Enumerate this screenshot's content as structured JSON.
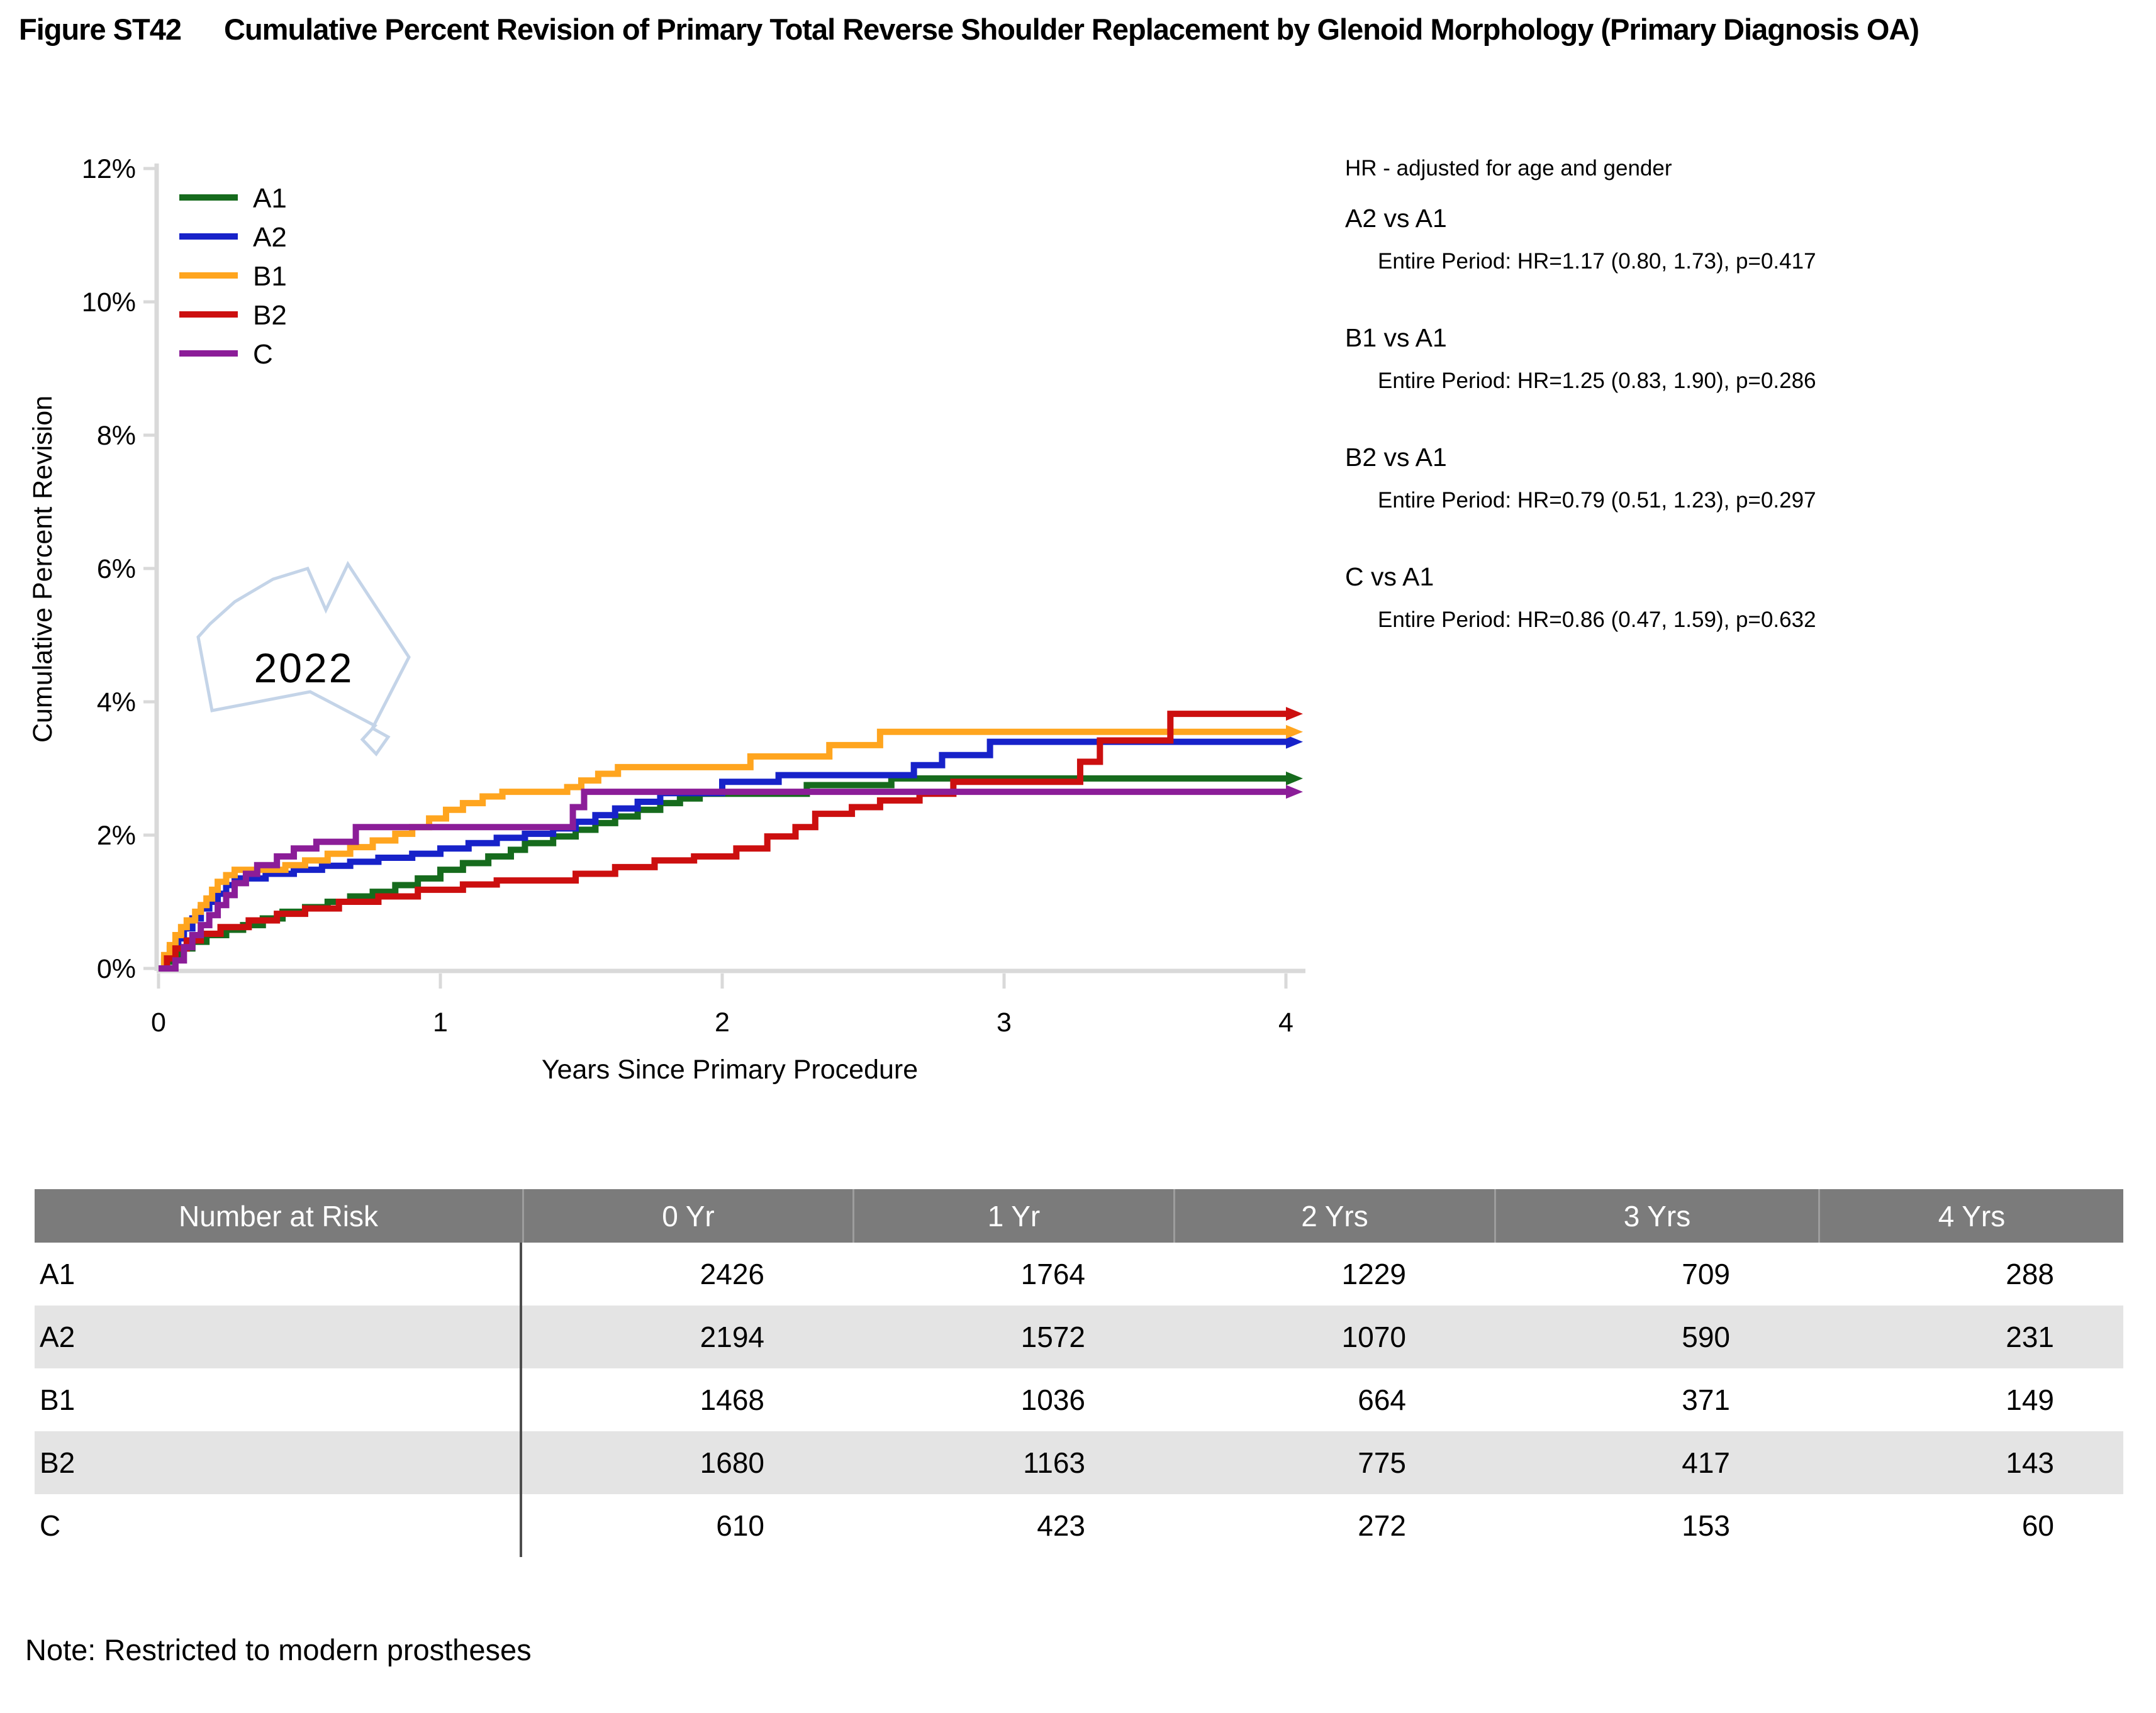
{
  "figure": {
    "number": "Figure ST42",
    "title": "Cumulative Percent Revision of Primary Total Reverse Shoulder Replacement by Glenoid Morphology (Primary Diagnosis OA)"
  },
  "hr_panel": {
    "header": "HR - adjusted for age and gender",
    "comparisons": [
      {
        "label": "A2 vs A1",
        "detail": "Entire Period: HR=1.17 (0.80, 1.73), p=0.417"
      },
      {
        "label": "B1 vs A1",
        "detail": "Entire Period: HR=1.25 (0.83, 1.90), p=0.286"
      },
      {
        "label": "B2 vs A1",
        "detail": "Entire Period: HR=0.79 (0.51, 1.23), p=0.297"
      },
      {
        "label": "C vs A1",
        "detail": "Entire Period: HR=0.86 (0.47, 1.59), p=0.632"
      }
    ]
  },
  "watermark": {
    "text": "2022"
  },
  "chart_data": {
    "type": "line",
    "subtype": "step-after-survival",
    "xlabel": "Years Since Primary Procedure",
    "ylabel": "Cumulative Percent Revision",
    "xlim": [
      0,
      4
    ],
    "ylim": [
      0,
      12
    ],
    "grid": false,
    "legend_position": "top-left-inside",
    "xticks": [
      {
        "v": 0,
        "label": "0"
      },
      {
        "v": 1,
        "label": "1"
      },
      {
        "v": 2,
        "label": "2"
      },
      {
        "v": 3,
        "label": "3"
      },
      {
        "v": 4,
        "label": "4"
      }
    ],
    "yticks": [
      {
        "v": 0,
        "label": "0%"
      },
      {
        "v": 2,
        "label": "2%"
      },
      {
        "v": 4,
        "label": "4%"
      },
      {
        "v": 6,
        "label": "6%"
      },
      {
        "v": 8,
        "label": "8%"
      },
      {
        "v": 10,
        "label": "10%"
      },
      {
        "v": 12,
        "label": "12%"
      }
    ],
    "series": [
      {
        "name": "A1",
        "color": "#166b1d",
        "final_value_pct": 2.85,
        "points": [
          [
            0,
            0
          ],
          [
            0.02,
            0.1
          ],
          [
            0.05,
            0.2
          ],
          [
            0.08,
            0.3
          ],
          [
            0.12,
            0.4
          ],
          [
            0.17,
            0.5
          ],
          [
            0.24,
            0.58
          ],
          [
            0.3,
            0.65
          ],
          [
            0.37,
            0.75
          ],
          [
            0.44,
            0.85
          ],
          [
            0.52,
            0.92
          ],
          [
            0.6,
            1.0
          ],
          [
            0.68,
            1.08
          ],
          [
            0.76,
            1.15
          ],
          [
            0.84,
            1.25
          ],
          [
            0.92,
            1.35
          ],
          [
            1.0,
            1.48
          ],
          [
            1.08,
            1.58
          ],
          [
            1.17,
            1.68
          ],
          [
            1.25,
            1.78
          ],
          [
            1.3,
            1.88
          ],
          [
            1.4,
            1.98
          ],
          [
            1.48,
            2.08
          ],
          [
            1.55,
            2.18
          ],
          [
            1.62,
            2.28
          ],
          [
            1.7,
            2.38
          ],
          [
            1.78,
            2.48
          ],
          [
            1.85,
            2.55
          ],
          [
            1.92,
            2.62
          ],
          [
            2.3,
            2.75
          ],
          [
            2.6,
            2.85
          ]
        ]
      },
      {
        "name": "A2",
        "color": "#1722c9",
        "final_value_pct": 3.4,
        "points": [
          [
            0,
            0
          ],
          [
            0.02,
            0.15
          ],
          [
            0.04,
            0.3
          ],
          [
            0.07,
            0.45
          ],
          [
            0.09,
            0.6
          ],
          [
            0.12,
            0.75
          ],
          [
            0.15,
            0.9
          ],
          [
            0.18,
            1.0
          ],
          [
            0.21,
            1.12
          ],
          [
            0.24,
            1.25
          ],
          [
            0.27,
            1.35
          ],
          [
            0.38,
            1.42
          ],
          [
            0.48,
            1.48
          ],
          [
            0.58,
            1.54
          ],
          [
            0.68,
            1.6
          ],
          [
            0.78,
            1.66
          ],
          [
            0.9,
            1.72
          ],
          [
            1.0,
            1.8
          ],
          [
            1.1,
            1.88
          ],
          [
            1.2,
            1.96
          ],
          [
            1.3,
            2.02
          ],
          [
            1.4,
            2.1
          ],
          [
            1.48,
            2.2
          ],
          [
            1.55,
            2.3
          ],
          [
            1.62,
            2.4
          ],
          [
            1.7,
            2.5
          ],
          [
            1.78,
            2.63
          ],
          [
            2.0,
            2.8
          ],
          [
            2.2,
            2.9
          ],
          [
            2.68,
            3.05
          ],
          [
            2.78,
            3.2
          ],
          [
            2.95,
            3.4
          ]
        ]
      },
      {
        "name": "B1",
        "color": "#ffa51f",
        "final_value_pct": 3.55,
        "points": [
          [
            0,
            0
          ],
          [
            0.02,
            0.2
          ],
          [
            0.04,
            0.35
          ],
          [
            0.06,
            0.5
          ],
          [
            0.08,
            0.62
          ],
          [
            0.1,
            0.72
          ],
          [
            0.13,
            0.85
          ],
          [
            0.15,
            0.95
          ],
          [
            0.17,
            1.05
          ],
          [
            0.19,
            1.18
          ],
          [
            0.21,
            1.3
          ],
          [
            0.24,
            1.4
          ],
          [
            0.27,
            1.48
          ],
          [
            0.45,
            1.55
          ],
          [
            0.52,
            1.62
          ],
          [
            0.6,
            1.72
          ],
          [
            0.68,
            1.82
          ],
          [
            0.76,
            1.92
          ],
          [
            0.84,
            2.02
          ],
          [
            0.9,
            2.12
          ],
          [
            0.96,
            2.25
          ],
          [
            1.02,
            2.38
          ],
          [
            1.08,
            2.48
          ],
          [
            1.15,
            2.58
          ],
          [
            1.22,
            2.65
          ],
          [
            1.45,
            2.72
          ],
          [
            1.5,
            2.82
          ],
          [
            1.56,
            2.92
          ],
          [
            1.63,
            3.02
          ],
          [
            2.1,
            3.18
          ],
          [
            2.38,
            3.35
          ],
          [
            2.56,
            3.55
          ]
        ]
      },
      {
        "name": "B2",
        "color": "#cc0f0f",
        "final_value_pct": 3.8,
        "points": [
          [
            0,
            0
          ],
          [
            0.03,
            0.15
          ],
          [
            0.06,
            0.3
          ],
          [
            0.1,
            0.42
          ],
          [
            0.15,
            0.52
          ],
          [
            0.22,
            0.62
          ],
          [
            0.32,
            0.72
          ],
          [
            0.42,
            0.82
          ],
          [
            0.52,
            0.9
          ],
          [
            0.64,
            1.0
          ],
          [
            0.78,
            1.08
          ],
          [
            0.92,
            1.18
          ],
          [
            1.08,
            1.26
          ],
          [
            1.2,
            1.32
          ],
          [
            1.48,
            1.42
          ],
          [
            1.62,
            1.52
          ],
          [
            1.76,
            1.62
          ],
          [
            1.9,
            1.68
          ],
          [
            2.05,
            1.8
          ],
          [
            2.16,
            1.98
          ],
          [
            2.26,
            2.12
          ],
          [
            2.33,
            2.32
          ],
          [
            2.46,
            2.42
          ],
          [
            2.56,
            2.52
          ],
          [
            2.7,
            2.62
          ],
          [
            2.82,
            2.8
          ],
          [
            3.27,
            3.1
          ],
          [
            3.34,
            3.42
          ],
          [
            3.59,
            3.82
          ]
        ]
      },
      {
        "name": "C",
        "color": "#8b1d98",
        "final_value_pct": 2.65,
        "points": [
          [
            0,
            0
          ],
          [
            0.06,
            0.12
          ],
          [
            0.09,
            0.32
          ],
          [
            0.12,
            0.5
          ],
          [
            0.15,
            0.65
          ],
          [
            0.18,
            0.8
          ],
          [
            0.21,
            0.95
          ],
          [
            0.24,
            1.1
          ],
          [
            0.27,
            1.28
          ],
          [
            0.31,
            1.42
          ],
          [
            0.35,
            1.55
          ],
          [
            0.42,
            1.68
          ],
          [
            0.48,
            1.8
          ],
          [
            0.56,
            1.9
          ],
          [
            0.7,
            2.12
          ],
          [
            1.47,
            2.42
          ],
          [
            1.51,
            2.65
          ]
        ]
      }
    ]
  },
  "risk_table": {
    "header": [
      "Number at Risk",
      "0 Yr",
      "1 Yr",
      "2 Yrs",
      "3 Yrs",
      "4 Yrs"
    ],
    "rows": [
      {
        "label": "A1",
        "values": [
          "2426",
          "1764",
          "1229",
          "709",
          "288"
        ]
      },
      {
        "label": "A2",
        "values": [
          "2194",
          "1572",
          "1070",
          "590",
          "231"
        ]
      },
      {
        "label": "B1",
        "values": [
          "1468",
          "1036",
          "664",
          "371",
          "149"
        ]
      },
      {
        "label": "B2",
        "values": [
          "1680",
          "1163",
          "775",
          "417",
          "143"
        ]
      },
      {
        "label": "C",
        "values": [
          "610",
          "423",
          "272",
          "153",
          "60"
        ]
      }
    ]
  },
  "note": "Note: Restricted to modern prostheses",
  "colors": {
    "axis_gray": "#d9d9d9",
    "table_header_bg": "#7b7b7b",
    "table_alt_row_bg": "#e4e4e4",
    "watermark_outline": "#c4d4e8",
    "watermark_text": "#b0c7e3"
  }
}
